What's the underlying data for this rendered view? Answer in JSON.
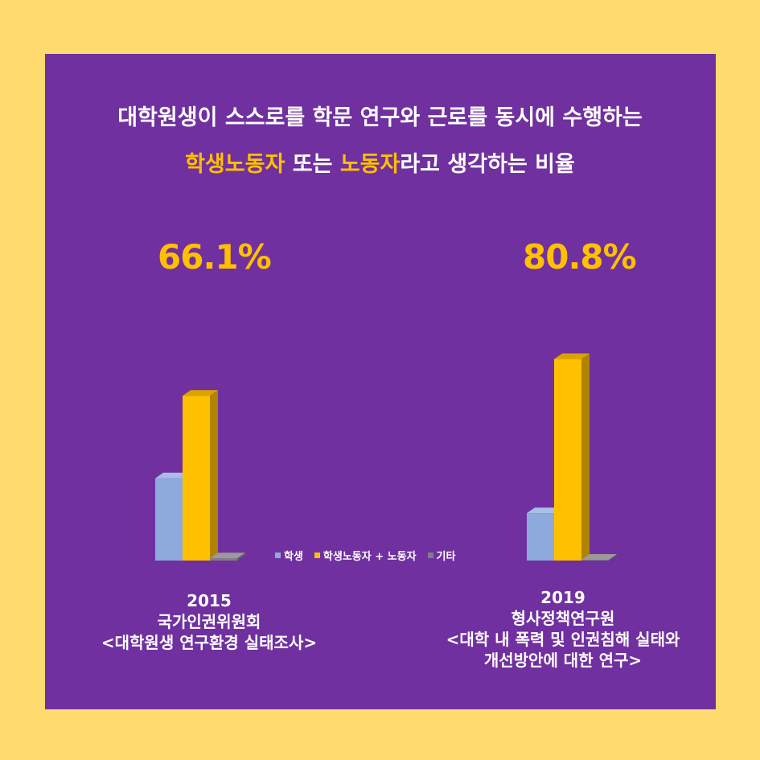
{
  "title": {
    "line1": "대학원생이 스스로를 학문 연구와 근로를 동시에 수행하는",
    "line2_part1": "학생노동자",
    "line2_part2": " 또는 ",
    "line2_part3": "노동자",
    "line2_part4": "라고 생각하는 비율"
  },
  "colors": {
    "background": "#FFDB6F",
    "panel": "#7030A0",
    "highlight": "#FFC000",
    "student": "#8EA9DB",
    "worker": "#FFC000",
    "other": "#808080"
  },
  "chart_data": [
    {
      "type": "bar",
      "year": "2015",
      "highlight_value": "66.1%",
      "categories": [
        "학생",
        "학생노동자 + 노동자",
        "기타"
      ],
      "values": [
        33.0,
        66.1,
        0.9
      ],
      "source_line1": "국가인권위원회",
      "source_line2": "<대학원생 연구환경 실태조사>"
    },
    {
      "type": "bar",
      "year": "2019",
      "highlight_value": "80.8%",
      "categories": [
        "학생",
        "학생노동자 + 노동자",
        "기타"
      ],
      "values": [
        19.0,
        80.8,
        0.2
      ],
      "source_line1": "형사정책연구원",
      "source_line2": "<대학 내 폭력 및 인권침해 실태와",
      "source_line3": "개선방안에 대한 연구>"
    }
  ],
  "legend": {
    "items": [
      "학생",
      "학생노동자 + 노동자",
      "기타"
    ]
  }
}
